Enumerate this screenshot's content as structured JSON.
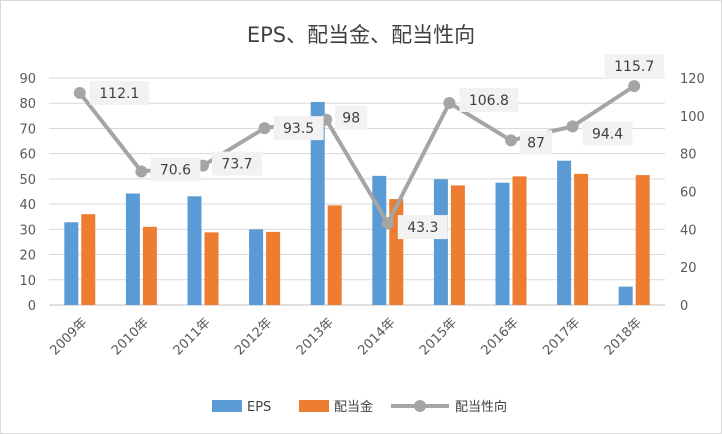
{
  "chart_data": {
    "type": "bar",
    "title": "EPS、配当金、配当性向",
    "categories": [
      "2009年",
      "2010年",
      "2011年",
      "2012年",
      "2013年",
      "2014年",
      "2015年",
      "2016年",
      "2017年",
      "2018年"
    ],
    "series": [
      {
        "name": "EPS",
        "type": "bar",
        "axis": "left",
        "color": "#5B9BD5",
        "values": [
          32.8,
          44.2,
          43.1,
          30.0,
          80.5,
          51.2,
          49.9,
          48.5,
          57.2,
          7.3
        ]
      },
      {
        "name": "配当金",
        "type": "bar",
        "axis": "left",
        "color": "#ED7D31",
        "values": [
          36.0,
          31.0,
          28.8,
          29.0,
          39.5,
          42.0,
          47.4,
          51.0,
          52.0,
          51.5
        ]
      },
      {
        "name": "配当性向",
        "type": "line",
        "axis": "right",
        "color": "#A5A5A5",
        "values": [
          112.1,
          70.6,
          73.7,
          93.5,
          98,
          43.3,
          106.8,
          87,
          94.4,
          115.7
        ],
        "labels": [
          "112.1",
          "70.6",
          "73.7",
          "93.5",
          "98",
          "43.3",
          "106.8",
          "87",
          "94.4",
          "115.7"
        ]
      }
    ],
    "y_left": {
      "ylim": [
        0,
        90
      ],
      "ticks": [
        "0",
        "10",
        "20",
        "30",
        "40",
        "50",
        "60",
        "70",
        "80",
        "90"
      ]
    },
    "y_right": {
      "ylim": [
        0,
        120
      ],
      "ticks": [
        "0",
        "20",
        "40",
        "60",
        "80",
        "100",
        "120"
      ]
    },
    "grid": true,
    "legend": "bottom"
  }
}
